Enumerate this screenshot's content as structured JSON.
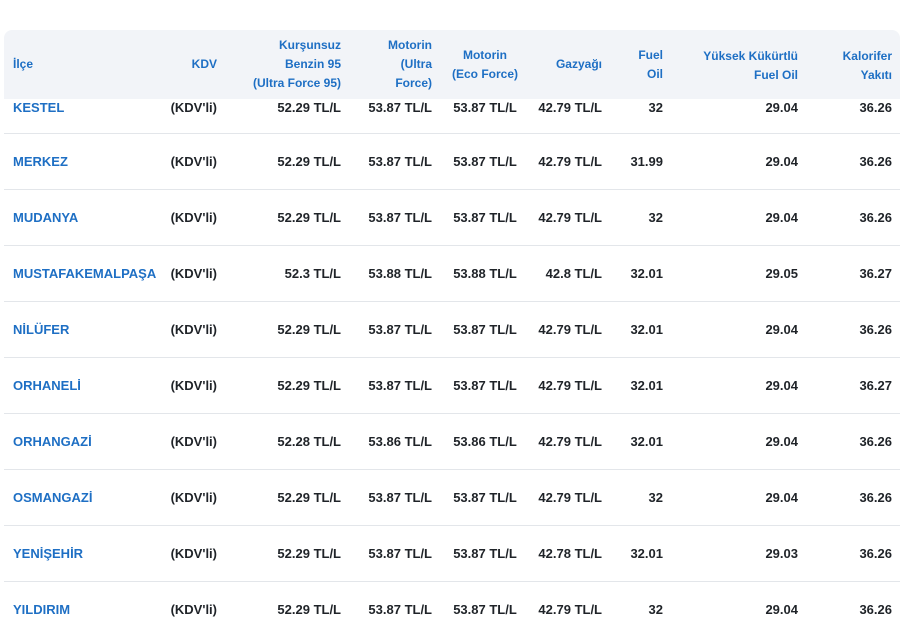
{
  "headers": {
    "ilce": "İlçe",
    "kdv": "KDV",
    "kursunsuz_1": "Kurşunsuz",
    "kursunsuz_2": "Benzin 95",
    "kursunsuz_3": "(Ultra Force 95)",
    "motorin_ultra_1": "Motorin",
    "motorin_ultra_2": "(Ultra",
    "motorin_ultra_3": "Force)",
    "motorin_eco_1": "Motorin",
    "motorin_eco_2": "(Eco Force)",
    "gazyagi": "Gazyağı",
    "fuel_oil_1": "Fuel",
    "fuel_oil_2": "Oil",
    "yuksek_1": "Yüksek Kükürtlü",
    "yuksek_2": "Fuel Oil",
    "kalorifer_1": "Kalorifer",
    "kalorifer_2": "Yakıtı"
  },
  "rows": [
    {
      "ilce": "KESTEL",
      "kdv": "(KDV'li)",
      "kursunsuz": "52.29 TL/L",
      "motorin_ultra": "53.87 TL/L",
      "motorin_eco": "53.87 TL/L",
      "gazyagi": "42.79 TL/L",
      "fuel_oil": "32",
      "yuksek": "29.04",
      "kalorifer": "36.26"
    },
    {
      "ilce": "MERKEZ",
      "kdv": "(KDV'li)",
      "kursunsuz": "52.29 TL/L",
      "motorin_ultra": "53.87 TL/L",
      "motorin_eco": "53.87 TL/L",
      "gazyagi": "42.79 TL/L",
      "fuel_oil": "31.99",
      "yuksek": "29.04",
      "kalorifer": "36.26"
    },
    {
      "ilce": "MUDANYA",
      "kdv": "(KDV'li)",
      "kursunsuz": "52.29 TL/L",
      "motorin_ultra": "53.87 TL/L",
      "motorin_eco": "53.87 TL/L",
      "gazyagi": "42.79 TL/L",
      "fuel_oil": "32",
      "yuksek": "29.04",
      "kalorifer": "36.26"
    },
    {
      "ilce": "MUSTAFAKEMALPAŞA",
      "kdv": "(KDV'li)",
      "kursunsuz": "52.3 TL/L",
      "motorin_ultra": "53.88 TL/L",
      "motorin_eco": "53.88 TL/L",
      "gazyagi": "42.8 TL/L",
      "fuel_oil": "32.01",
      "yuksek": "29.05",
      "kalorifer": "36.27"
    },
    {
      "ilce": "NİLÜFER",
      "kdv": "(KDV'li)",
      "kursunsuz": "52.29 TL/L",
      "motorin_ultra": "53.87 TL/L",
      "motorin_eco": "53.87 TL/L",
      "gazyagi": "42.79 TL/L",
      "fuel_oil": "32.01",
      "yuksek": "29.04",
      "kalorifer": "36.26"
    },
    {
      "ilce": "ORHANELİ",
      "kdv": "(KDV'li)",
      "kursunsuz": "52.29 TL/L",
      "motorin_ultra": "53.87 TL/L",
      "motorin_eco": "53.87 TL/L",
      "gazyagi": "42.79 TL/L",
      "fuel_oil": "32.01",
      "yuksek": "29.04",
      "kalorifer": "36.27"
    },
    {
      "ilce": "ORHANGAZİ",
      "kdv": "(KDV'li)",
      "kursunsuz": "52.28 TL/L",
      "motorin_ultra": "53.86 TL/L",
      "motorin_eco": "53.86 TL/L",
      "gazyagi": "42.79 TL/L",
      "fuel_oil": "32.01",
      "yuksek": "29.04",
      "kalorifer": "36.26"
    },
    {
      "ilce": "OSMANGAZİ",
      "kdv": "(KDV'li)",
      "kursunsuz": "52.29 TL/L",
      "motorin_ultra": "53.87 TL/L",
      "motorin_eco": "53.87 TL/L",
      "gazyagi": "42.79 TL/L",
      "fuel_oil": "32",
      "yuksek": "29.04",
      "kalorifer": "36.26"
    },
    {
      "ilce": "YENİŞEHİR",
      "kdv": "(KDV'li)",
      "kursunsuz": "52.29 TL/L",
      "motorin_ultra": "53.87 TL/L",
      "motorin_eco": "53.87 TL/L",
      "gazyagi": "42.78 TL/L",
      "fuel_oil": "32.01",
      "yuksek": "29.03",
      "kalorifer": "36.26"
    },
    {
      "ilce": "YILDIRIM",
      "kdv": "(KDV'li)",
      "kursunsuz": "52.29 TL/L",
      "motorin_ultra": "53.87 TL/L",
      "motorin_eco": "53.87 TL/L",
      "gazyagi": "42.79 TL/L",
      "fuel_oil": "32",
      "yuksek": "29.04",
      "kalorifer": "36.26"
    }
  ],
  "colors": {
    "header_bg": "#f2f4f8",
    "link_blue": "#1e6fc4",
    "text": "#1f2328",
    "divider": "#e3e6ea"
  }
}
